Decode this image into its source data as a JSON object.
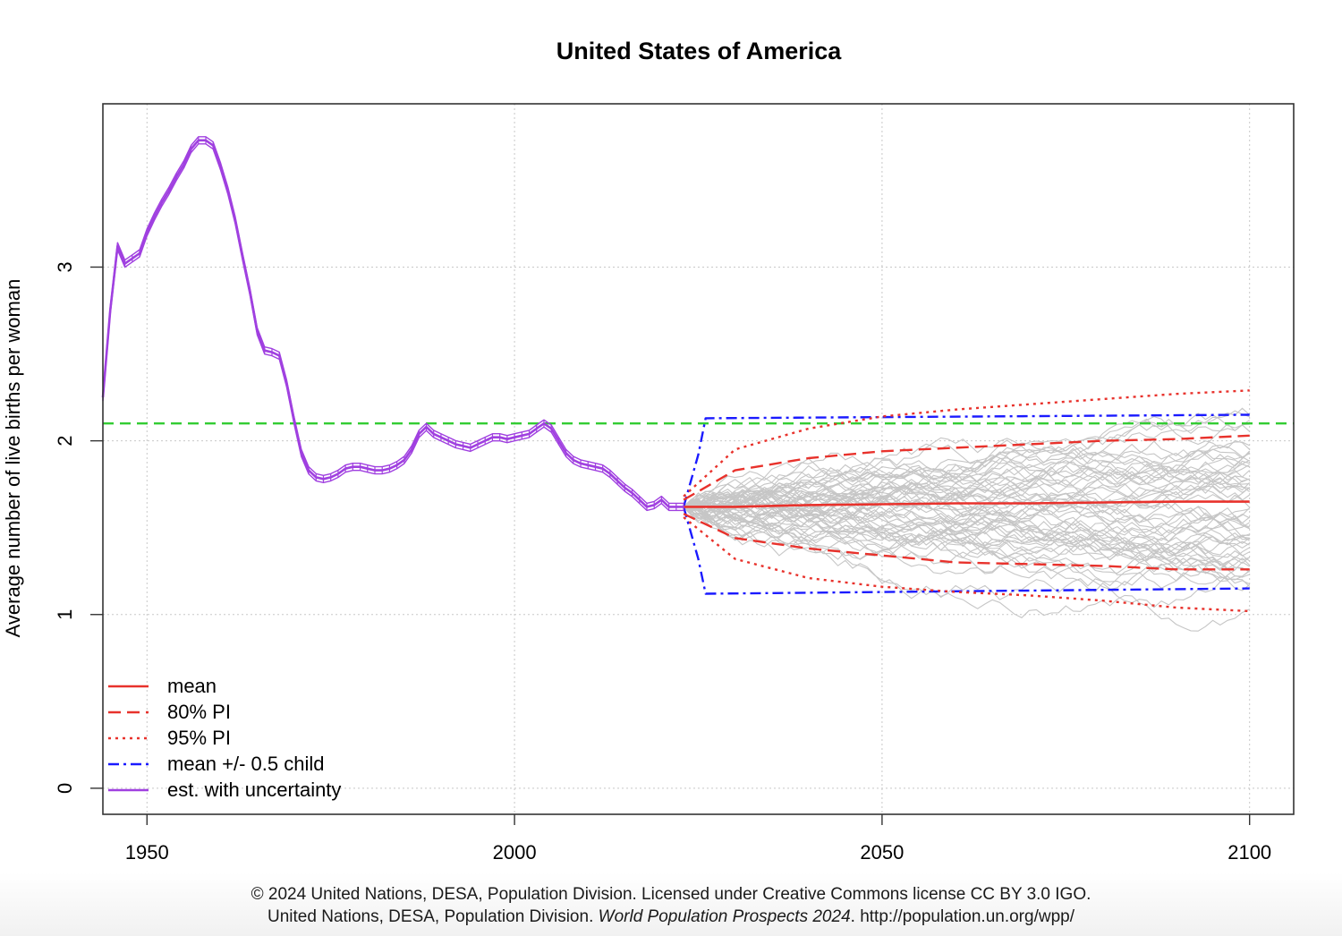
{
  "chart_data": {
    "type": "line",
    "title": "United States of America",
    "xlabel": "",
    "ylabel": "Average number of live births per woman",
    "xlim": [
      1944,
      2106
    ],
    "ylim": [
      -0.15,
      3.94
    ],
    "xticks": [
      1950,
      2000,
      2050,
      2100
    ],
    "yticks": [
      0,
      1,
      2,
      3
    ],
    "grid": true,
    "legend_position": "bottom-left",
    "reference_line": {
      "y": 2.1,
      "color": "#33cc33",
      "style": "dashed"
    },
    "legend": [
      {
        "label": "mean",
        "color": "#e8322c",
        "style": "solid"
      },
      {
        "label": "80% PI",
        "color": "#e8322c",
        "style": "dashed"
      },
      {
        "label": "95% PI",
        "color": "#e8322c",
        "style": "dotted"
      },
      {
        "label": "mean +/- 0.5 child",
        "color": "#1a1aff",
        "style": "dotdash"
      },
      {
        "label": "est. with uncertainty",
        "color": "#a040e0",
        "style": "solid"
      }
    ],
    "series": [
      {
        "name": "est. with uncertainty",
        "color": "#a040e0",
        "x": [
          1944,
          1945,
          1946,
          1947,
          1948,
          1949,
          1950,
          1951,
          1952,
          1953,
          1954,
          1955,
          1956,
          1957,
          1958,
          1959,
          1960,
          1961,
          1962,
          1963,
          1964,
          1965,
          1966,
          1967,
          1968,
          1969,
          1970,
          1971,
          1972,
          1973,
          1974,
          1975,
          1976,
          1977,
          1978,
          1979,
          1980,
          1981,
          1982,
          1983,
          1984,
          1985,
          1986,
          1987,
          1988,
          1989,
          1990,
          1991,
          1992,
          1993,
          1994,
          1995,
          1996,
          1997,
          1998,
          1999,
          2000,
          2001,
          2002,
          2003,
          2004,
          2005,
          2006,
          2007,
          2008,
          2009,
          2010,
          2011,
          2012,
          2013,
          2014,
          2015,
          2016,
          2017,
          2018,
          2019,
          2020,
          2021,
          2022,
          2023
        ],
        "values": [
          2.25,
          2.75,
          3.12,
          3.02,
          3.05,
          3.08,
          3.2,
          3.29,
          3.37,
          3.44,
          3.52,
          3.59,
          3.68,
          3.73,
          3.73,
          3.7,
          3.58,
          3.44,
          3.27,
          3.06,
          2.86,
          2.63,
          2.52,
          2.51,
          2.49,
          2.33,
          2.12,
          1.93,
          1.83,
          1.79,
          1.78,
          1.79,
          1.81,
          1.84,
          1.85,
          1.85,
          1.84,
          1.83,
          1.83,
          1.84,
          1.86,
          1.89,
          1.95,
          2.04,
          2.08,
          2.04,
          2.02,
          2.0,
          1.98,
          1.97,
          1.96,
          1.98,
          2.0,
          2.02,
          2.02,
          2.01,
          2.02,
          2.03,
          2.04,
          2.07,
          2.1,
          2.07,
          2.0,
          1.93,
          1.89,
          1.87,
          1.86,
          1.85,
          1.84,
          1.81,
          1.77,
          1.73,
          1.7,
          1.66,
          1.62,
          1.63,
          1.66,
          1.62,
          1.62,
          1.62
        ]
      },
      {
        "name": "mean",
        "color": "#e8322c",
        "x": [
          2023,
          2030,
          2040,
          2050,
          2060,
          2070,
          2080,
          2090,
          2100
        ],
        "values": [
          1.62,
          1.62,
          1.63,
          1.635,
          1.64,
          1.64,
          1.645,
          1.65,
          1.65
        ]
      },
      {
        "name": "80% PI upper",
        "color": "#e8322c",
        "x": [
          2023,
          2030,
          2040,
          2050,
          2060,
          2070,
          2080,
          2090,
          2100
        ],
        "values": [
          1.66,
          1.83,
          1.9,
          1.94,
          1.96,
          1.98,
          2.0,
          2.01,
          2.03
        ]
      },
      {
        "name": "80% PI lower",
        "color": "#e8322c",
        "x": [
          2023,
          2030,
          2040,
          2050,
          2060,
          2070,
          2080,
          2090,
          2100
        ],
        "values": [
          1.58,
          1.44,
          1.38,
          1.34,
          1.3,
          1.29,
          1.28,
          1.26,
          1.26
        ]
      },
      {
        "name": "95% PI upper",
        "color": "#e8322c",
        "x": [
          2023,
          2030,
          2040,
          2050,
          2060,
          2070,
          2080,
          2090,
          2100
        ],
        "values": [
          1.68,
          1.95,
          2.07,
          2.14,
          2.18,
          2.21,
          2.24,
          2.27,
          2.29
        ]
      },
      {
        "name": "95% PI lower",
        "color": "#e8322c",
        "x": [
          2023,
          2030,
          2040,
          2050,
          2060,
          2070,
          2080,
          2090,
          2100
        ],
        "values": [
          1.56,
          1.32,
          1.21,
          1.16,
          1.13,
          1.11,
          1.08,
          1.04,
          1.02
        ]
      },
      {
        "name": "mean +0.5 child",
        "color": "#1a1aff",
        "x": [
          2023,
          2025,
          2026,
          2100
        ],
        "values": [
          1.62,
          1.92,
          2.13,
          2.15
        ]
      },
      {
        "name": "mean -0.5 child",
        "color": "#1a1aff",
        "x": [
          2023,
          2025,
          2026,
          2100
        ],
        "values": [
          1.62,
          1.32,
          1.12,
          1.15
        ]
      }
    ]
  },
  "footer": {
    "line1": "© 2024 United Nations, DESA, Population Division. Licensed under Creative Commons license CC BY 3.0 IGO.",
    "line2_prefix": "United Nations, DESA, Population Division. ",
    "line2_italic": "World Population Prospects 2024",
    "line2_suffix": ". http://population.un.org/wpp/"
  }
}
